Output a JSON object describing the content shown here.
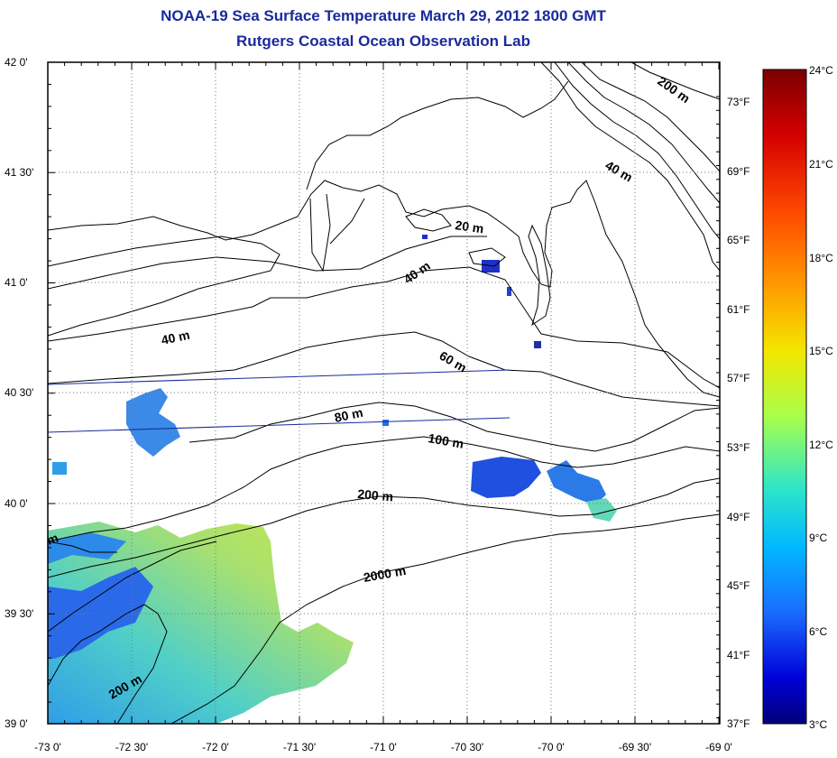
{
  "title": "NOAA-19 Sea Surface Temperature March 29, 2012 1800 GMT",
  "subtitle": "Rutgers Coastal Ocean Observation Lab",
  "axes": {
    "lon_ticks": [
      "-73 0'",
      "-72 30'",
      "-72 0'",
      "-71 30'",
      "-71 0'",
      "-70 30'",
      "-70 0'",
      "-69 30'",
      "-69 0'"
    ],
    "lat_ticks": [
      "42 0'",
      "41 30'",
      "41 0'",
      "40 30'",
      "40 0'",
      "39 30'",
      "39 0'"
    ],
    "fahrenheit_ticks": [
      "73°F",
      "69°F",
      "65°F",
      "61°F",
      "57°F",
      "53°F",
      "49°F",
      "45°F",
      "41°F",
      "37°F"
    ]
  },
  "colorbar": {
    "labels": [
      "24°C",
      "21°C",
      "18°C",
      "15°C",
      "12°C",
      "9°C",
      "6°C",
      "3°C"
    ],
    "colors": [
      "#7a0000",
      "#d40000",
      "#ff4a00",
      "#ff9a00",
      "#f4e600",
      "#a8ff4a",
      "#2ee6c8",
      "#00b8ff",
      "#1a6cff",
      "#0000d8",
      "#00007a"
    ]
  },
  "depth_labels": [
    "200 m",
    "40 m",
    "20 m",
    "40 m",
    "40 m",
    "60 m",
    "80 m",
    "100 m",
    "200 m",
    "2000 m",
    "200 m",
    "m"
  ],
  "colors": {
    "title": "#1a2a9c",
    "cold": "#1f5ee8",
    "cool": "#2f9ee8",
    "mid": "#63d8b8",
    "warm": "#b8e84a"
  }
}
